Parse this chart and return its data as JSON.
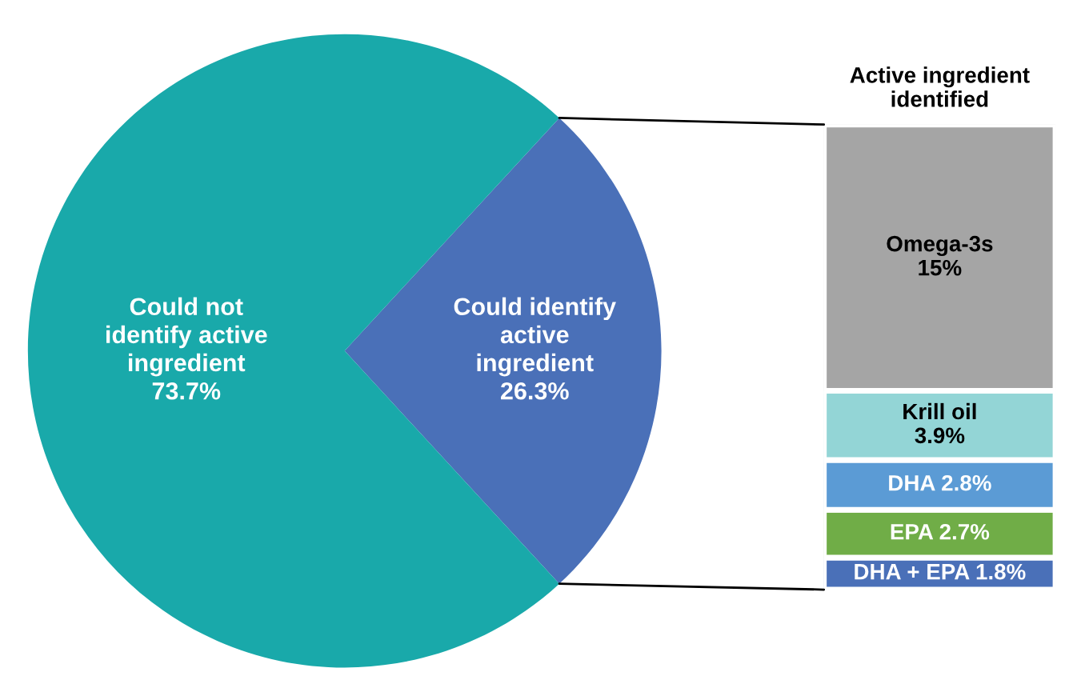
{
  "chart_data": [
    {
      "type": "pie",
      "categories": [
        "Could identify\nactive\ningredient",
        "Could not\nidentify active\ningredient"
      ],
      "values": [
        26.3,
        73.7
      ],
      "colors": [
        "#4a70b8",
        "#19a9aa"
      ],
      "value_labels": [
        "26.3%",
        "73.7%"
      ]
    },
    {
      "type": "bar",
      "stacked": true,
      "title": "Active ingredient\nidentified",
      "categories": [
        null
      ],
      "series": [
        {
          "name": "DHA + EPA",
          "color": "#4a70b8",
          "values": [
            1.8
          ],
          "value_labels": [
            "1.8%"
          ]
        },
        {
          "name": "EPA",
          "color": "#70ad47",
          "values": [
            2.7
          ],
          "value_labels": [
            "2.7%"
          ]
        },
        {
          "name": "DHA",
          "color": "#5b9bd5",
          "values": [
            2.8
          ],
          "value_labels": [
            "2.8%"
          ]
        },
        {
          "name": "Krill oil",
          "color": "#93d5d6",
          "values": [
            3.9
          ],
          "value_labels": [
            "3.9%"
          ]
        },
        {
          "name": "Omega-3s",
          "color": "#a5a5a5",
          "values": [
            15
          ],
          "value_labels": [
            "15%"
          ]
        }
      ]
    }
  ]
}
